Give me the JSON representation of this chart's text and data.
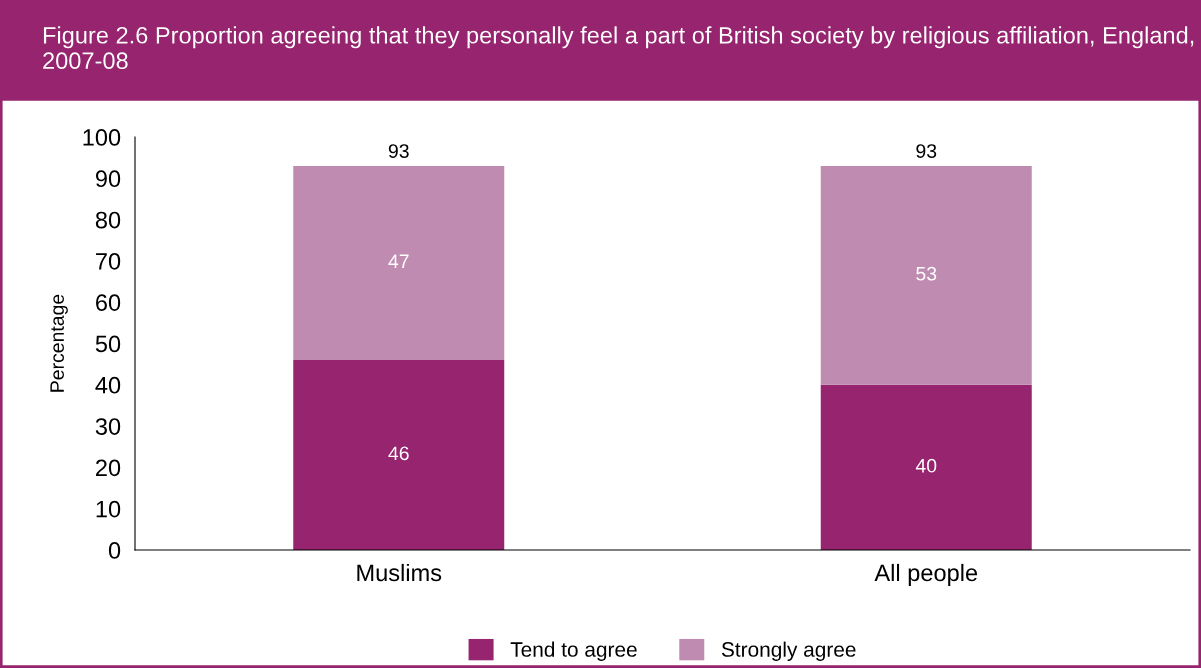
{
  "chart_data": {
    "type": "bar",
    "title": "Figure 2.6 Proportion agreeing that they personally feel a part of British society by religious affiliation, England, 2007-08",
    "ylabel": "Percentage",
    "categories": [
      "Muslims",
      "All people"
    ],
    "series": [
      {
        "name": "Tend to agree",
        "color": "#96246f",
        "values": [
          46,
          40
        ]
      },
      {
        "name": "Strongly agree",
        "color": "#c08bb0",
        "values": [
          47,
          53
        ]
      }
    ],
    "stacked": true,
    "data_labels": true,
    "totals": [
      "93",
      "93"
    ],
    "ylim": [
      0,
      100
    ],
    "yticks": [
      0,
      10,
      20,
      30,
      40,
      50,
      60,
      70,
      80,
      90,
      100
    ],
    "grid": false,
    "legend": "bottom"
  }
}
